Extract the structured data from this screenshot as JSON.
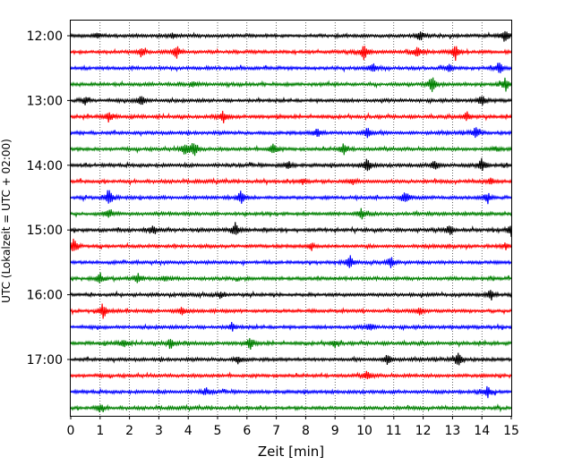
{
  "chart_data": {
    "type": "line",
    "title": "",
    "xlabel": "Zeit  [min]",
    "ylabel": "UTC (Lokalzeit = UTC + 02:00)",
    "xlim": [
      0,
      15
    ],
    "x_ticks": [
      "0",
      "1",
      "2",
      "3",
      "4",
      "5",
      "6",
      "7",
      "8",
      "9",
      "10",
      "11",
      "12",
      "13",
      "14",
      "15"
    ],
    "y_ticks": [
      "12:00",
      "13:00",
      "14:00",
      "15:00",
      "16:00",
      "17:00"
    ],
    "grid": "vertical dotted",
    "trace_interval_min": 15,
    "trace_count": 24,
    "trace_colors": [
      "#000000",
      "#ff0000",
      "#0000ff",
      "#008000"
    ],
    "traces": [
      {
        "start": "12:00",
        "events": [
          [
            0.9,
            0.3
          ],
          [
            3.5,
            0.3
          ],
          [
            11.9,
            0.6
          ],
          [
            14.8,
            0.8
          ]
        ]
      },
      {
        "start": "12:15",
        "events": [
          [
            2.4,
            0.6
          ],
          [
            3.6,
            0.7
          ],
          [
            10.0,
            0.9
          ],
          [
            11.8,
            0.7
          ],
          [
            13.1,
            0.8
          ]
        ]
      },
      {
        "start": "12:30",
        "events": [
          [
            10.3,
            0.6
          ],
          [
            12.9,
            0.5
          ],
          [
            14.6,
            0.7
          ]
        ]
      },
      {
        "start": "12:45",
        "events": [
          [
            4.2,
            0.3
          ],
          [
            12.3,
            0.9
          ],
          [
            14.8,
            0.8
          ]
        ]
      },
      {
        "start": "13:00",
        "events": [
          [
            0.5,
            0.5
          ],
          [
            2.4,
            0.6
          ],
          [
            14.0,
            0.6
          ]
        ]
      },
      {
        "start": "13:15",
        "events": [
          [
            1.3,
            0.6
          ],
          [
            5.2,
            0.6
          ],
          [
            13.5,
            0.5
          ]
        ]
      },
      {
        "start": "13:30",
        "events": [
          [
            8.4,
            0.5
          ],
          [
            10.1,
            0.6
          ],
          [
            13.8,
            0.6
          ]
        ]
      },
      {
        "start": "13:45",
        "events": [
          [
            3.9,
            0.7
          ],
          [
            4.2,
            0.9
          ],
          [
            6.9,
            0.7
          ],
          [
            9.3,
            0.6
          ],
          [
            14.5,
            0.3
          ]
        ]
      },
      {
        "start": "14:00",
        "events": [
          [
            7.4,
            0.4
          ],
          [
            10.1,
            0.8
          ],
          [
            12.4,
            0.6
          ],
          [
            14.0,
            0.8
          ]
        ]
      },
      {
        "start": "14:15",
        "events": [
          [
            7.9,
            0.4
          ],
          [
            9.6,
            0.3
          ],
          [
            14.3,
            0.3
          ]
        ]
      },
      {
        "start": "14:30",
        "events": [
          [
            1.3,
            1.0
          ],
          [
            5.8,
            0.7
          ],
          [
            11.4,
            0.7
          ],
          [
            14.2,
            0.6
          ]
        ]
      },
      {
        "start": "14:45",
        "events": [
          [
            1.3,
            0.4
          ],
          [
            9.9,
            0.6
          ]
        ]
      },
      {
        "start": "15:00",
        "events": [
          [
            2.8,
            0.5
          ],
          [
            5.6,
            0.8
          ],
          [
            12.9,
            0.6
          ],
          [
            15.0,
            0.6
          ]
        ]
      },
      {
        "start": "15:15",
        "events": [
          [
            0.1,
            0.9
          ],
          [
            8.2,
            0.4
          ],
          [
            14.8,
            0.3
          ]
        ]
      },
      {
        "start": "15:30",
        "events": [
          [
            9.5,
            0.8
          ],
          [
            10.9,
            0.6
          ]
        ]
      },
      {
        "start": "15:45",
        "events": [
          [
            1.0,
            0.6
          ],
          [
            2.3,
            0.6
          ],
          [
            3.2,
            0.3
          ]
        ]
      },
      {
        "start": "16:00",
        "events": [
          [
            5.1,
            0.3
          ],
          [
            14.3,
            0.6
          ]
        ]
      },
      {
        "start": "16:15",
        "events": [
          [
            1.1,
            0.8
          ],
          [
            3.8,
            0.4
          ],
          [
            11.9,
            0.4
          ]
        ]
      },
      {
        "start": "16:30",
        "events": [
          [
            5.5,
            0.4
          ],
          [
            10.2,
            0.4
          ]
        ]
      },
      {
        "start": "16:45",
        "events": [
          [
            1.8,
            0.5
          ],
          [
            3.4,
            0.6
          ],
          [
            6.1,
            0.6
          ],
          [
            9.0,
            0.4
          ]
        ]
      },
      {
        "start": "17:00",
        "events": [
          [
            5.7,
            0.4
          ],
          [
            10.8,
            0.6
          ],
          [
            13.2,
            0.9
          ]
        ]
      },
      {
        "start": "17:15",
        "events": [
          [
            10.1,
            0.5
          ]
        ]
      },
      {
        "start": "17:30",
        "events": [
          [
            4.6,
            0.4
          ],
          [
            14.2,
            0.6
          ]
        ]
      },
      {
        "start": "17:45",
        "events": [
          [
            1.0,
            0.5
          ]
        ]
      }
    ]
  }
}
